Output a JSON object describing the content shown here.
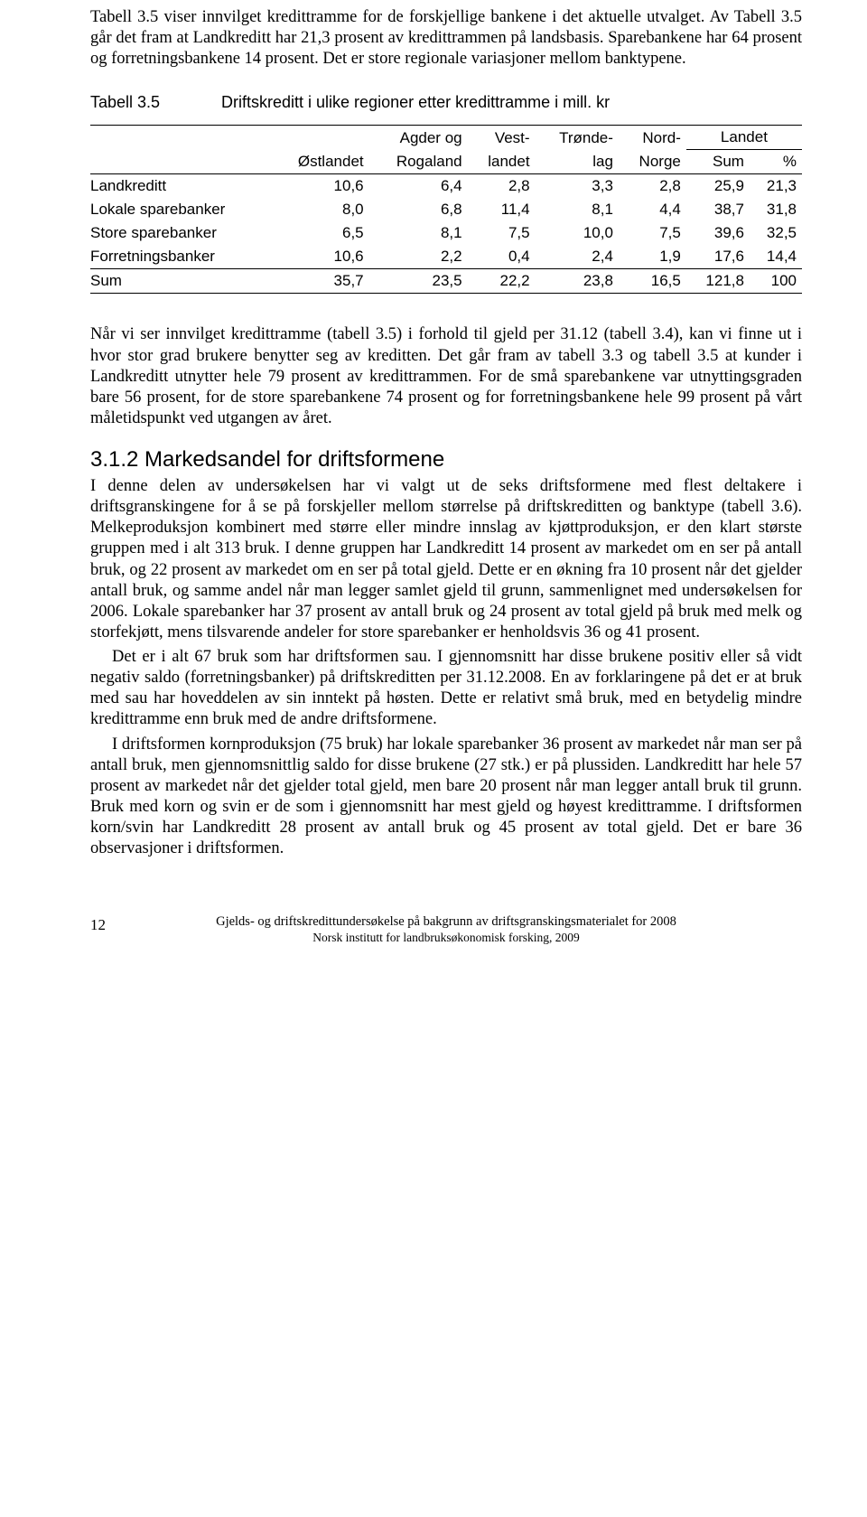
{
  "para1": "Tabell 3.5 viser innvilget kredittramme for de forskjellige bankene i det aktuelle utvalget. Av Tabell 3.5 går det fram at Landkreditt har 21,3 prosent av kredittrammen på landsbasis. Sparebankene har 64 prosent og forretningsbankene 14 prosent. Det er store regionale variasjoner mellom banktypene.",
  "table": {
    "label": "Tabell 3.5",
    "title": "Driftskreditt i ulike regioner etter kredittramme i mill. kr",
    "header_row1_landet": "Landet",
    "columns": [
      "",
      "Østlandet",
      "Agder og Rogaland",
      "Vest-landet",
      "Trønde-lag",
      "Nord-Norge",
      "Sum",
      "%"
    ],
    "col_top": [
      "Agder og",
      "Vest-",
      "Trønde-",
      "Nord-"
    ],
    "col_bot": [
      "Østlandet",
      "Rogaland",
      "landet",
      "lag",
      "Norge",
      "Sum",
      "%"
    ],
    "rows": [
      {
        "label": "Landkreditt",
        "vals": [
          "10,6",
          "6,4",
          "2,8",
          "3,3",
          "2,8",
          "25,9",
          "21,3"
        ]
      },
      {
        "label": "Lokale sparebanker",
        "vals": [
          "8,0",
          "6,8",
          "11,4",
          "8,1",
          "4,4",
          "38,7",
          "31,8"
        ]
      },
      {
        "label": "Store sparebanker",
        "vals": [
          "6,5",
          "8,1",
          "7,5",
          "10,0",
          "7,5",
          "39,6",
          "32,5"
        ]
      },
      {
        "label": "Forretningsbanker",
        "vals": [
          "10,6",
          "2,2",
          "0,4",
          "2,4",
          "1,9",
          "17,6",
          "14,4"
        ]
      }
    ],
    "sum": {
      "label": "Sum",
      "vals": [
        "35,7",
        "23,5",
        "22,2",
        "23,8",
        "16,5",
        "121,8",
        "100"
      ]
    }
  },
  "para2": "Når vi ser innvilget kredittramme (tabell 3.5) i forhold til gjeld per 31.12 (tabell 3.4), kan vi finne ut i hvor stor grad brukere benytter seg av kreditten. Det går fram av tabell 3.3 og tabell 3.5 at kunder i Landkreditt utnytter hele 79 prosent av kredittrammen. For de små sparebankene var utnyttingsgraden bare 56 prosent, for de store sparebankene 74 prosent og for forretningsbankene hele 99 prosent på vårt måletidspunkt ved utgangen av året.",
  "heading": "3.1.2  Markedsandel for driftsformene",
  "para3": "I denne delen av undersøkelsen har vi valgt ut de seks driftsformene med flest deltakere i driftsgranskingene for å se på forskjeller mellom størrelse på driftskreditten og banktype (tabell 3.6). Melkeproduksjon kombinert med større eller mindre innslag av kjøttproduksjon, er den klart største gruppen med i alt 313 bruk. I denne gruppen har Landkreditt 14 prosent av markedet om en ser på antall bruk, og 22 prosent av markedet om en ser på total gjeld. Dette er en økning fra 10 prosent når det gjelder antall bruk, og samme andel når man legger samlet gjeld til grunn, sammenlignet med undersøkelsen for 2006. Lokale sparebanker har 37 prosent av antall bruk og 24 prosent av total gjeld på bruk med melk og storfekjøtt, mens tilsvarende andeler for store sparebanker er henholdsvis 36 og 41 prosent.",
  "para4": "Det er i alt 67 bruk som har driftsformen sau. I gjennomsnitt har disse brukene positiv eller så vidt negativ saldo (forretningsbanker) på driftskreditten per 31.12.2008. En av forklaringene på det er at bruk med sau har hoveddelen av sin inntekt på høsten. Dette er relativt små bruk, med en betydelig mindre kredittramme enn bruk med de andre driftsformene.",
  "para5": "I driftsformen kornproduksjon (75 bruk) har lokale sparebanker 36 prosent av markedet når man ser på antall bruk, men gjennomsnittlig saldo for disse brukene (27 stk.) er på plussiden. Landkreditt har hele 57 prosent av markedet når det gjelder total gjeld, men bare 20 prosent når man legger antall bruk til grunn. Bruk med korn og svin er de som i gjennomsnitt har mest gjeld og høyest kredittramme. I driftsformen korn/svin har Landkreditt 28 prosent av antall bruk og 45 prosent av total gjeld. Det er bare 36 observasjoner i driftsformen.",
  "footer": {
    "pagenum": "12",
    "line1": "Gjelds- og driftskredittundersøkelse på bakgrunn av driftsgranskingsmaterialet for 2008",
    "line2": "Norsk institutt for landbruksøkonomisk forsking, 2009"
  }
}
